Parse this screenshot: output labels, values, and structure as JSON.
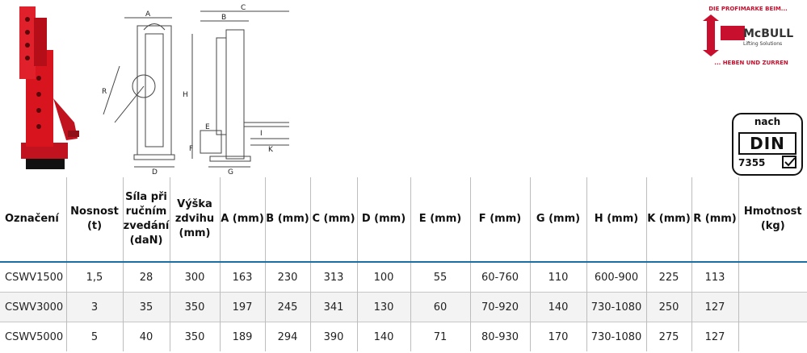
{
  "header": {
    "columns": [
      "Označení",
      "Nosnost (t)",
      "Síla při ručním zvedání (daN)",
      "Výška zdvihu (mm)",
      "A (mm)",
      "B (mm)",
      "C (mm)",
      "D (mm)",
      "E (mm)",
      "F (mm)",
      "G (mm)",
      "H (mm)",
      "K (mm)",
      "R (mm)",
      "Hmotnost (kg)"
    ]
  },
  "rows": [
    [
      "CSWV1500",
      "1,5",
      "28",
      "300",
      "163",
      "230",
      "313",
      "100",
      "55",
      "60-760",
      "110",
      "600-900",
      "225",
      "113",
      ""
    ],
    [
      "CSWV3000",
      "3",
      "35",
      "350",
      "197",
      "245",
      "341",
      "130",
      "60",
      "70-920",
      "140",
      "730-1080",
      "250",
      "127",
      ""
    ],
    [
      "CSWV5000",
      "5",
      "40",
      "350",
      "189",
      "294",
      "390",
      "140",
      "71",
      "80-930",
      "170",
      "730-1080",
      "275",
      "127",
      ""
    ]
  ],
  "drawing_labels": {
    "a": "A",
    "b": "B",
    "c": "C",
    "d": "D",
    "e": "E",
    "f": "F",
    "g": "G",
    "h": "H",
    "i": "I",
    "k": "K",
    "r": "R"
  },
  "logo": {
    "top_text": "DIE PROFIMARKE BEIM...",
    "brand": "McBULL",
    "sub": "Lifting Solutions",
    "bottom_text": "... HEBEN UND ZURREN"
  },
  "din": {
    "top": "nach",
    "mid": "DIN",
    "bot": "7355"
  },
  "colors": {
    "accent": "#1a6fa6",
    "product_red": "#d8141f",
    "logo_red": "#c8102e"
  }
}
